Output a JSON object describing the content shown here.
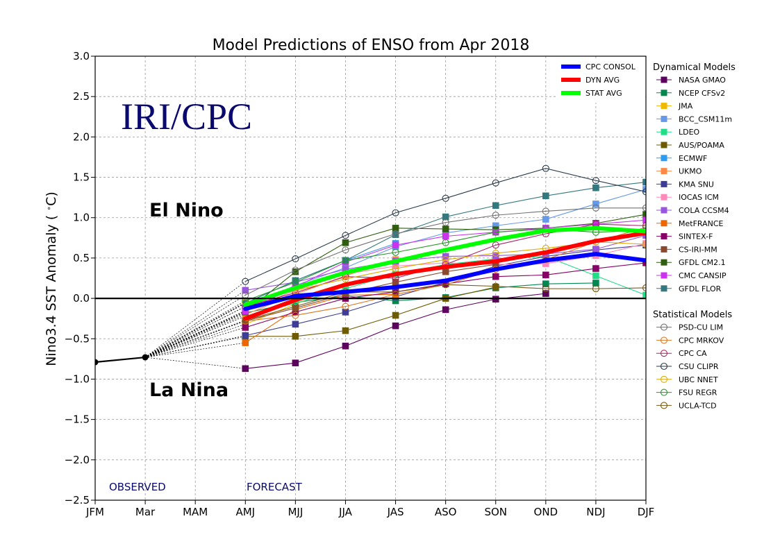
{
  "chart_data": {
    "type": "line",
    "title": "Model Predictions of ENSO from Apr 2018",
    "xlabel": "",
    "ylabel": "Nino3.4 SST Anomaly ( ",
    "ylabel_unit": "C)",
    "watermark": "IRI/CPC",
    "annotations": {
      "el_nino": "El Nino",
      "la_nina": "La Nina",
      "observed": "OBSERVED",
      "forecast": "FORECAST"
    },
    "categories": [
      "JFM",
      "Mar",
      "MAM",
      "AMJ",
      "MJJ",
      "JJA",
      "JAS",
      "ASO",
      "SON",
      "OND",
      "NDJ",
      "DJF"
    ],
    "ylim": [
      -2.5,
      3.0
    ],
    "yticks": [
      -2.5,
      -2.0,
      -1.5,
      -1.0,
      -0.5,
      0.0,
      0.5,
      1.0,
      1.5,
      2.0,
      2.5,
      3.0
    ],
    "ytick_labels": [
      "−2.5",
      "−2.0",
      "−1.5",
      "−1.0",
      "−0.5",
      "0.0",
      "0.5",
      "1.0",
      "1.5",
      "2.0",
      "2.5",
      "3.0"
    ],
    "grid": true,
    "observed": {
      "name": "Observed",
      "points": [
        [
          0,
          -0.79
        ],
        [
          1,
          -0.73
        ]
      ],
      "color": "#000000"
    },
    "summary_series": [
      {
        "name": "CPC CONSOL",
        "color": "#0000ff",
        "values": [
          -0.13,
          0.03,
          0.08,
          0.14,
          0.22,
          0.36,
          0.47,
          0.55,
          0.47
        ]
      },
      {
        "name": "DYN AVG",
        "color": "#ff0000",
        "values": [
          -0.25,
          -0.02,
          0.17,
          0.3,
          0.39,
          0.46,
          0.57,
          0.71,
          0.81
        ]
      },
      {
        "name": "STAT AVG",
        "color": "#00ff00",
        "values": [
          -0.08,
          0.13,
          0.32,
          0.46,
          0.6,
          0.73,
          0.84,
          0.87,
          0.83
        ]
      }
    ],
    "legend_groups": [
      {
        "title": "Dynamical Models",
        "marker": "square",
        "items": [
          {
            "name": "NASA GMAO",
            "color": "#5e005e",
            "values": [
              -0.87,
              -0.8,
              -0.59,
              -0.34,
              -0.14,
              -0.01,
              0.06,
              null,
              null
            ]
          },
          {
            "name": "NCEP CFSv2",
            "color": "#00884f",
            "values": [
              -0.18,
              -0.05,
              0.03,
              -0.03,
              0.01,
              0.13,
              0.18,
              0.19,
              null
            ]
          },
          {
            "name": "JMA",
            "color": "#f0b800",
            "values": [
              -0.32,
              -0.07,
              0.15,
              0.3,
              null,
              null,
              null,
              null,
              null
            ]
          },
          {
            "name": "BCC_CSM11m",
            "color": "#6699e8",
            "values": [
              -0.1,
              0.16,
              0.38,
              0.64,
              0.81,
              0.9,
              0.98,
              1.17,
              1.35
            ]
          },
          {
            "name": "LDEO",
            "color": "#22dd88",
            "values": [
              -0.22,
              -0.06,
              0.12,
              0.3,
              0.42,
              0.49,
              0.52,
              0.28,
              0.04
            ]
          },
          {
            "name": "AUS/POAMA",
            "color": "#6e5b00",
            "values": [
              -0.47,
              -0.47,
              -0.4,
              -0.21,
              0.0,
              0.14,
              null,
              null,
              null
            ]
          },
          {
            "name": "ECMWF",
            "color": "#2e9cf0",
            "values": [
              -0.06,
              0.22,
              0.47,
              0.68,
              null,
              null,
              null,
              null,
              null
            ]
          },
          {
            "name": "UKMO",
            "color": "#ff8844",
            "values": [
              -0.2,
              0.05,
              0.28,
              0.48,
              null,
              null,
              null,
              null,
              null
            ]
          },
          {
            "name": "KMA SNU",
            "color": "#3d3d99",
            "values": [
              -0.46,
              -0.32,
              -0.17,
              0.02,
              0.2,
              0.4,
              0.52,
              0.6,
              0.66
            ]
          },
          {
            "name": "IOCAS ICM",
            "color": "#ff88bb",
            "values": [
              -0.15,
              0.1,
              0.3,
              0.4,
              0.44,
              0.42,
              0.43,
              0.53,
              0.68
            ]
          },
          {
            "name": "COLA CCSM4",
            "color": "#9955dd",
            "values": [
              0.1,
              0.2,
              0.36,
              0.46,
              0.52,
              0.53,
              0.55,
              0.61,
              0.78
            ]
          },
          {
            "name": "MetFRANCE",
            "color": "#ee6600",
            "values": [
              -0.55,
              -0.14,
              0.04,
              0.05,
              null,
              null,
              null,
              null,
              null
            ]
          },
          {
            "name": "SINTEX-F",
            "color": "#880066",
            "values": [
              -0.36,
              -0.17,
              0.0,
              0.08,
              0.18,
              0.27,
              0.29,
              0.37,
              0.44
            ]
          },
          {
            "name": "CS-IRI-MM",
            "color": "#8b4a30",
            "values": [
              -0.28,
              -0.12,
              0.06,
              0.2,
              0.33,
              0.42,
              null,
              null,
              null
            ]
          },
          {
            "name": "GFDL CM2.1",
            "color": "#2f5e0f",
            "values": [
              -0.17,
              0.33,
              0.69,
              0.87,
              0.86,
              0.85,
              0.87,
              0.93,
              1.04
            ]
          },
          {
            "name": "CMC CANSIP",
            "color": "#cc33ee",
            "values": [
              -0.16,
              0.14,
              0.45,
              0.66,
              0.77,
              0.82,
              0.87,
              0.92,
              0.97
            ]
          },
          {
            "name": "GFDL FLOR",
            "color": "#33777f",
            "values": [
              -0.06,
              0.22,
              0.47,
              0.79,
              1.01,
              1.15,
              1.27,
              1.37,
              1.44
            ]
          }
        ]
      },
      {
        "title": "Statistical Models",
        "marker": "circle",
        "items": [
          {
            "name": "PSD-CU LIM",
            "color": "#707070",
            "values": [
              0.04,
              0.35,
              0.6,
              0.8,
              0.94,
              1.03,
              1.08,
              1.12,
              1.12
            ]
          },
          {
            "name": "CPC MRKOV",
            "color": "#dd7722",
            "values": [
              -0.28,
              -0.21,
              -0.1,
              0.05,
              0.17,
              0.36,
              0.48,
              0.7,
              0.88
            ]
          },
          {
            "name": "CPC CA",
            "color": "#aa2266",
            "values": [
              -0.1,
              0.07,
              0.27,
              0.25,
              0.42,
              0.66,
              0.8,
              0.92,
              0.9
            ]
          },
          {
            "name": "CSU CLIPR",
            "color": "#2a3a4a",
            "values": [
              0.21,
              0.49,
              0.78,
              1.06,
              1.24,
              1.43,
              1.61,
              1.46,
              1.32
            ]
          },
          {
            "name": "UBC NNET",
            "color": "#ddaa00",
            "values": [
              -0.05,
              0.1,
              0.24,
              0.37,
              0.48,
              0.56,
              0.62,
              0.7,
              0.67
            ]
          },
          {
            "name": "FSU REGR",
            "color": "#229922",
            "values": [
              -0.03,
              0.2,
              0.47,
              0.57,
              0.69,
              0.82,
              0.86,
              0.82,
              0.84
            ]
          },
          {
            "name": "UCLA-TCD",
            "color": "#775511",
            "values": [
              -0.27,
              -0.1,
              0.08,
              0.08,
              0.17,
              0.15,
              0.12,
              0.12,
              0.13
            ]
          }
        ]
      }
    ]
  }
}
